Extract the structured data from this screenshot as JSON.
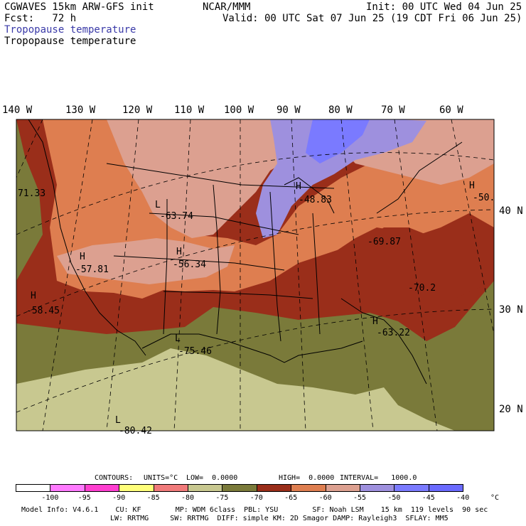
{
  "header": {
    "model_line": "CGWAVES 15km ARW-GFS init",
    "fcst_line": "Fcst:   72 h",
    "center": "NCAR/MMM",
    "init": "Init: 00 UTC Wed 04 Jun 25",
    "valid": "Valid: 00 UTC Sat 07 Jun 25 (19 CDT Fri 06 Jun 25)",
    "field_title_colored": "Tropopause temperature",
    "field_title": "Tropopause temperature",
    "title_color": "#3a3aa8"
  },
  "longitude_labels": [
    "140 W",
    "130 W",
    "120 W",
    "110 W",
    "100 W",
    "90 W",
    "80 W",
    "70 W",
    "60 W"
  ],
  "latitude_labels": [
    "40 N",
    "30 N",
    "20 N"
  ],
  "map_labels": [
    {
      "type": "L",
      "value": "-63.74"
    },
    {
      "type": "H",
      "value": "-57.81"
    },
    {
      "type": "H",
      "value": "-56.34"
    },
    {
      "type": "H",
      "value": "-58.45"
    },
    {
      "type": "L",
      "value": "-75.46"
    },
    {
      "type": "H",
      "value": "-48.83"
    },
    {
      "type": "",
      "value": "-69.87"
    },
    {
      "type": "",
      "value": "-70.2"
    },
    {
      "type": "H",
      "value": "-63.22"
    },
    {
      "type": "H",
      "value": "-50."
    },
    {
      "type": "",
      "value": "71.33"
    },
    {
      "type": "L",
      "value": "-80.42"
    }
  ],
  "contour_info": {
    "contours": "CONTOURS:",
    "units": "UNITS=°C",
    "low": "LOW=  0.0000",
    "high": "HIGH=  0.0000",
    "interval": "INTERVAL=   1000.0"
  },
  "colorbar": {
    "unit": "°C",
    "labels": [
      "-100",
      "-95",
      "-90",
      "-85",
      "-80",
      "-75",
      "-70",
      "-65",
      "-60",
      "-55",
      "-50",
      "-45",
      "-40"
    ],
    "colors": [
      "#ffffff",
      "#ff7aff",
      "#ff3fd0",
      "#ffff7a",
      "#f07a7a",
      "#c8c890",
      "#7a7a3a",
      "#9a2e1a",
      "#de7e50",
      "#dca090",
      "#9e90de",
      "#7a7aff",
      "#6a6aff"
    ]
  },
  "footer": {
    "line1": "Model Info: V4.6.1    CU: KF        MP: WDM 6class  PBL: YSU        SF: Noah LSM    15 km  119 levels  90 sec",
    "line2": "LW: RRTMG     SW: RRTMG  DIFF: simple KM: 2D Smagor DAMP: Rayleigh3  SFLAY: MM5"
  }
}
